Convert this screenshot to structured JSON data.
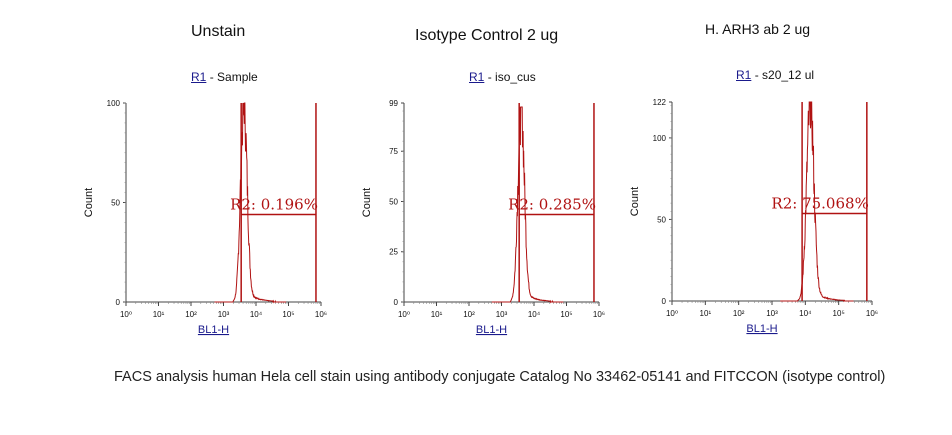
{
  "caption": "FACS analysis human Hela cell stain using antibody conjugate Catalog No 33462-05141 and FITCCON (isotype control)",
  "chart_data": [
    {
      "type": "histogram",
      "title": "Unstain",
      "gate_name": "R1",
      "sample_name": "Sample",
      "xlabel": "BL1-H",
      "ylabel": "Count",
      "xscale": "log",
      "xlim": [
        1,
        1000000
      ],
      "x_ticks": [
        "10⁰",
        "10¹",
        "10²",
        "10³",
        "10⁴",
        "10⁵",
        "10⁶"
      ],
      "ylim": [
        0,
        100
      ],
      "y_ticks": [
        0,
        50,
        100
      ],
      "region": {
        "name": "R2",
        "percent": "0.196%",
        "x_range": [
          3500,
          700000
        ],
        "label": "R2: 0.196%"
      },
      "distribution": {
        "peak_x": 4200,
        "peak_count": 100,
        "sigma_log": 0.1
      }
    },
    {
      "type": "histogram",
      "title": "Isotype Control 2 ug",
      "gate_name": "R1",
      "sample_name": "iso_cus",
      "xlabel": "BL1-H",
      "ylabel": "Count",
      "xscale": "log",
      "xlim": [
        1,
        1000000
      ],
      "x_ticks": [
        "10⁰",
        "10¹",
        "10²",
        "10³",
        "10⁴",
        "10⁵",
        "10⁶"
      ],
      "ylim": [
        0,
        99
      ],
      "y_ticks": [
        0,
        25,
        50,
        75,
        99
      ],
      "region": {
        "name": "R2",
        "percent": "0.285%",
        "x_range": [
          3500,
          700000
        ],
        "label": "R2: 0.285%"
      },
      "distribution": {
        "peak_x": 4000,
        "peak_count": 97,
        "sigma_log": 0.1
      }
    },
    {
      "type": "histogram",
      "title": "H. ARH3 ab 2 ug",
      "gate_name": "R1",
      "sample_name": "s20_12 ul",
      "xlabel": "BL1-H",
      "ylabel": "Count",
      "xscale": "log",
      "xlim": [
        1,
        1000000
      ],
      "x_ticks": [
        "10⁰",
        "10¹",
        "10²",
        "10³",
        "10⁴",
        "10⁵",
        "10⁶"
      ],
      "ylim": [
        0,
        122
      ],
      "y_ticks": [
        0,
        50,
        100,
        122
      ],
      "region": {
        "name": "R2",
        "percent": "75.068%",
        "x_range": [
          8000,
          700000
        ],
        "label": "R2: 75.068%"
      },
      "distribution": {
        "peak_x": 14000,
        "peak_count": 122,
        "sigma_log": 0.11
      }
    }
  ]
}
